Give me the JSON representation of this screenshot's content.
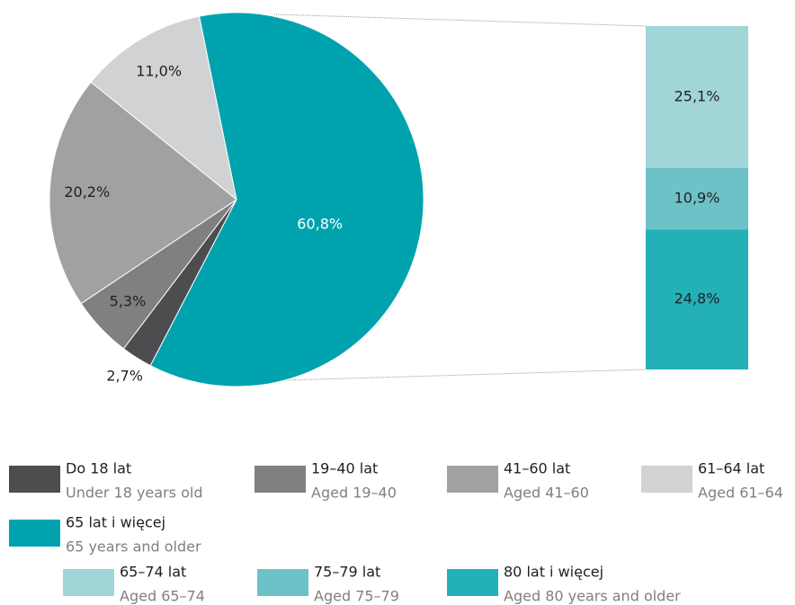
{
  "chart_data": {
    "type": "pie",
    "categories": [
      "Do 18 lat",
      "19–40 lat",
      "41–60 lat",
      "61–64 lat",
      "65 lat i więcej"
    ],
    "categories_en": [
      "Under 18 years old",
      "Aged 19–40",
      "Aged 41–60",
      "Aged 61–64",
      "65 years and older"
    ],
    "values": [
      2.7,
      5.3,
      20.2,
      11.0,
      60.8
    ],
    "value_labels": [
      "2,7%",
      "5,3%",
      "20,2%",
      "11,0%",
      "60,8%"
    ],
    "colors": [
      "#4d4d4f",
      "#808083",
      "#a0a1a3",
      "#d1d2d3",
      "#00a3ad"
    ],
    "breakdown": {
      "type": "bar",
      "categories": [
        "65–74 lat",
        "75–79 lat",
        "80 lat i więcej"
      ],
      "categories_en": [
        "Aged 65–74",
        "Aged 75–79",
        "Aged 80 years and older"
      ],
      "values": [
        25.1,
        10.9,
        24.8
      ],
      "value_labels": [
        "25,1%",
        "10,9%",
        "24,8%"
      ],
      "colors": [
        "#a2d5d8",
        "#6cc2c7",
        "#24b0b7"
      ]
    }
  }
}
